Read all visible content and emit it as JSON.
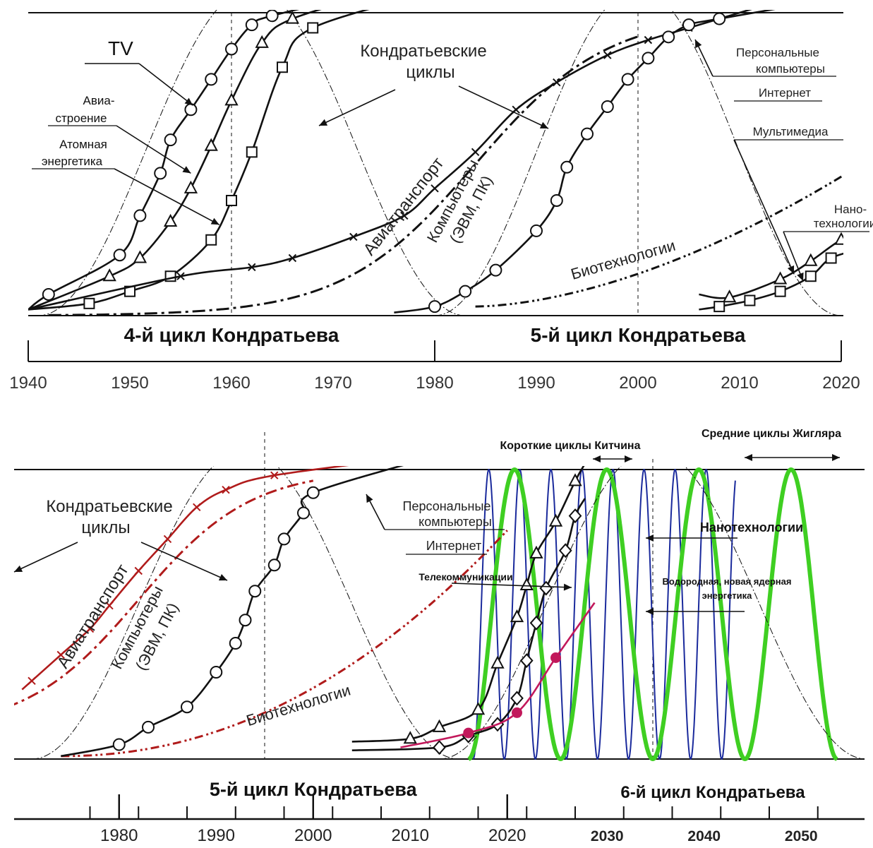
{
  "chart_data": [
    {
      "type": "line",
      "xlim": [
        1940,
        2020
      ],
      "ylim": [
        0,
        1
      ],
      "x_ticks": [
        "1940",
        "1950",
        "1960",
        "1970",
        "1980",
        "1990",
        "2000",
        "2010",
        "2020"
      ],
      "cycle_labels": [
        "4-й цикл Кондратьева",
        "5-й цикл Кондратьева"
      ],
      "annotations": {
        "kondratiev": [
          "Кондратьевские",
          "циклы"
        ],
        "tv": "TV",
        "aviation_mfg": [
          "Авиа-",
          "строение"
        ],
        "nuclear": [
          "Атомная",
          "энергетика"
        ],
        "pc": [
          "Персональные",
          "компьютеры"
        ],
        "internet": "Интернет",
        "multimedia": "Мультимедиа",
        "nano": [
          "Нано-",
          "технологии"
        ],
        "air_transport": "Авиатранспорт",
        "computers": [
          "Компьютеры",
          "(ЭВМ, ПК)"
        ],
        "biotech": "Биотехнологии"
      },
      "series": [
        {
          "key": "tv",
          "marker": "circle",
          "x": [
            1942,
            1949,
            1951,
            1953,
            1954,
            1956,
            1958,
            1960,
            1962,
            1964
          ],
          "y": [
            0.07,
            0.2,
            0.33,
            0.47,
            0.58,
            0.68,
            0.78,
            0.88,
            0.96,
            0.99
          ]
        },
        {
          "key": "aviation_mfg",
          "marker": "triangle",
          "x": [
            1948,
            1951,
            1954,
            1956,
            1958,
            1960,
            1963,
            1966
          ],
          "y": [
            0.13,
            0.19,
            0.31,
            0.42,
            0.56,
            0.71,
            0.9,
            0.98
          ]
        },
        {
          "key": "nuclear",
          "marker": "square",
          "x": [
            1946,
            1950,
            1954,
            1958,
            1960,
            1962,
            1965,
            1968
          ],
          "y": [
            0.04,
            0.08,
            0.13,
            0.25,
            0.38,
            0.54,
            0.82,
            0.95
          ]
        },
        {
          "key": "air_transport",
          "marker": "x",
          "x": [
            1955,
            1962,
            1966,
            1972,
            1977,
            1980,
            1984,
            1988,
            1992,
            1997,
            2001,
            2005
          ],
          "y": [
            0.13,
            0.16,
            0.19,
            0.26,
            0.33,
            0.42,
            0.54,
            0.68,
            0.77,
            0.86,
            0.91,
            0.95
          ]
        },
        {
          "key": "pc",
          "marker": "circle",
          "x": [
            1980,
            1983,
            1986,
            1990,
            1992,
            1993,
            1995,
            1997,
            1999,
            2001,
            2003,
            2005,
            2008
          ],
          "y": [
            0.03,
            0.08,
            0.15,
            0.28,
            0.38,
            0.49,
            0.6,
            0.69,
            0.78,
            0.85,
            0.92,
            0.96,
            0.98
          ]
        },
        {
          "key": "multimedia",
          "marker": "triangle",
          "x": [
            2009,
            2014,
            2017,
            2020
          ],
          "y": [
            0.06,
            0.12,
            0.18,
            0.25
          ]
        },
        {
          "key": "nano",
          "marker": "square",
          "x": [
            2008,
            2011,
            2014,
            2017,
            2019
          ],
          "y": [
            0.03,
            0.05,
            0.08,
            0.13,
            0.19
          ]
        }
      ]
    },
    {
      "type": "line",
      "xlim": [
        1970,
        2052
      ],
      "ylim": [
        0,
        1
      ],
      "x_ticks": [
        "1980",
        "1990",
        "2000",
        "2010",
        "2020",
        "2030",
        "2040",
        "2050"
      ],
      "cycle_labels": [
        "5-й цикл Кондратьева",
        "6-й цикл Кондратьева"
      ],
      "annotations": {
        "kondratiev": [
          "Кондратьевские",
          "циклы"
        ],
        "pc": [
          "Персональные",
          "компьютеры"
        ],
        "internet": "Интернет",
        "telecom": "Телекоммуникации",
        "nano": "Нанотехнологии",
        "energy": [
          "Водородная, новая ядерная",
          "энергетика"
        ],
        "kitchin": "Короткие циклы Китчина",
        "juglar": "Средние циклы Жигляра",
        "air_transport": "Авиатранспорт",
        "computers": [
          "Компьютеры",
          "(ЭВМ, ПК)"
        ],
        "biotech": "Биотехнологии"
      },
      "colors": {
        "air_transport": "#b01b1b",
        "energy": "#c2185b",
        "kitchin": "#1a2a9c",
        "juglar": "#3fcf22"
      },
      "series": [
        {
          "key": "air_transport",
          "marker": "x",
          "x": [
            1971,
            1974,
            1977,
            1979,
            1982,
            1985,
            1988,
            1991,
            1996
          ],
          "y": [
            0.27,
            0.36,
            0.45,
            0.53,
            0.65,
            0.76,
            0.87,
            0.93,
            0.98
          ]
        },
        {
          "key": "pc",
          "marker": "circle",
          "x": [
            1980,
            1983,
            1987,
            1990,
            1992,
            1993,
            1994,
            1996,
            1997,
            1999,
            2000
          ],
          "y": [
            0.05,
            0.11,
            0.18,
            0.3,
            0.4,
            0.48,
            0.58,
            0.67,
            0.76,
            0.85,
            0.92
          ]
        },
        {
          "key": "telecom",
          "marker": "triangle",
          "x": [
            2010,
            2013,
            2017,
            2019,
            2021,
            2022,
            2023,
            2025,
            2027
          ],
          "y": [
            0.07,
            0.11,
            0.17,
            0.33,
            0.49,
            0.6,
            0.71,
            0.82,
            0.96
          ]
        },
        {
          "key": "nano",
          "marker": "diamond",
          "x": [
            2013,
            2016,
            2019,
            2021,
            2022,
            2023,
            2024,
            2026,
            2027
          ],
          "y": [
            0.04,
            0.08,
            0.12,
            0.21,
            0.34,
            0.47,
            0.59,
            0.72,
            0.84
          ]
        },
        {
          "key": "energy",
          "marker": "filled_circle",
          "x": [
            2016,
            2021,
            2025
          ],
          "y": [
            0.09,
            0.16,
            0.35
          ]
        }
      ],
      "cycles": [
        {
          "key": "kitchin",
          "period_years": 3.2
        },
        {
          "key": "juglar",
          "period_years": 9.5
        }
      ]
    }
  ]
}
